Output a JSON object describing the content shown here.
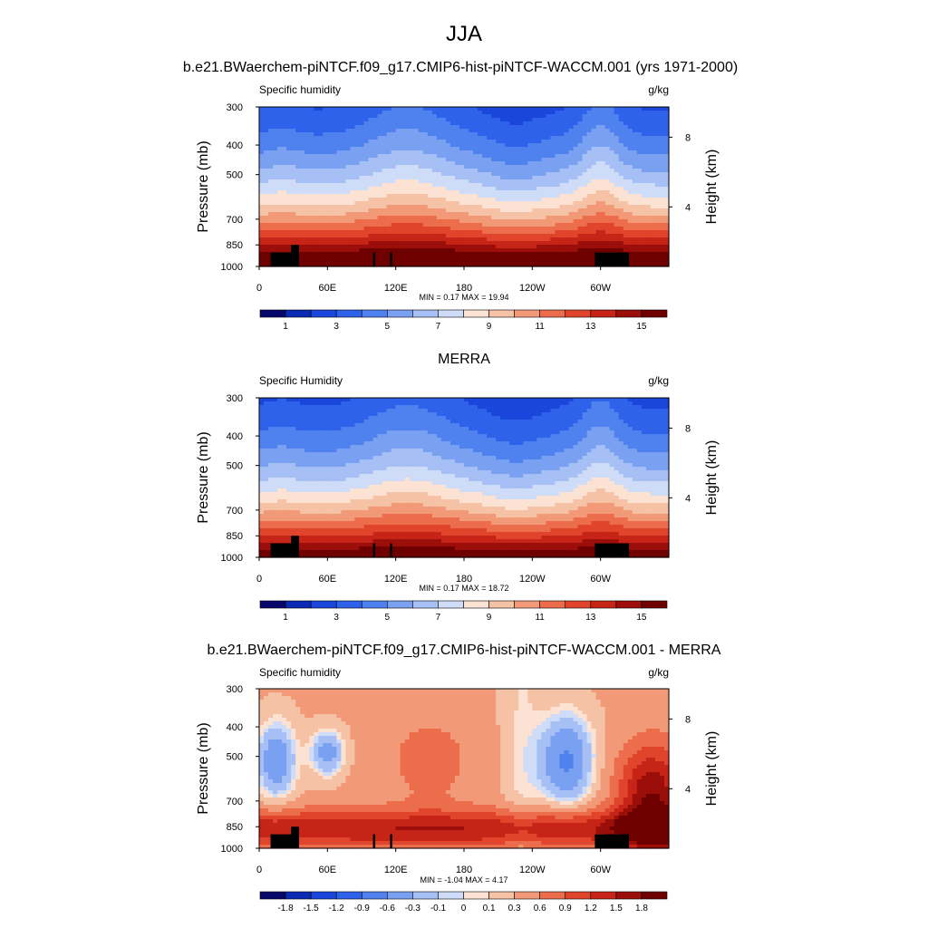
{
  "figure": {
    "season": "JJA"
  },
  "panels": [
    {
      "title": "b.e21.BWaerchem-piNTCF.f09_g17.CMIP6-hist-piNTCF-WACCM.001 (yrs 1971-2000)",
      "left_label": "Specific humidity",
      "right_label": "g/kg",
      "min_max": "MIN =   0.17  MAX =  19.94"
    },
    {
      "title": "MERRA",
      "left_label": "Specific Humidity",
      "right_label": "g/kg",
      "min_max": "MIN =   0.17  MAX =  18.72"
    },
    {
      "title": "b.e21.BWaerchem-piNTCF.f09_g17.CMIP6-hist-piNTCF-WACCM.001 - MERRA",
      "left_label": "Specific humidity",
      "right_label": "g/kg",
      "min_max": "MIN =  -1.04  MAX =   4.17"
    }
  ],
  "chart_data": [
    {
      "type": "heatmap",
      "title": "b.e21.BWaerchem-piNTCF.f09_g17.CMIP6-hist-piNTCF-WACCM.001 (yrs 1971-2000)",
      "variable": "Specific humidity",
      "units": "g/kg",
      "ylabel": "Pressure (mb)",
      "ylabel_right": "Height (km)",
      "x_ticks": [
        "0",
        "60E",
        "120E",
        "180",
        "120W",
        "60W"
      ],
      "x_tick_values": [
        0,
        60,
        120,
        180,
        240,
        300
      ],
      "xlim": [
        0,
        360
      ],
      "y_ticks": [
        300,
        400,
        500,
        700,
        850,
        1000
      ],
      "ylim": [
        1000,
        300
      ],
      "y_right_ticks": [
        4,
        8
      ],
      "min": 0.17,
      "max": 19.94,
      "colorbar_labels": [
        "1",
        "3",
        "5",
        "7",
        "9",
        "11",
        "13",
        "15"
      ],
      "colorbar_levels": [
        1,
        2,
        3,
        4,
        5,
        6,
        7,
        8,
        9,
        10,
        11,
        12,
        13,
        14,
        15
      ],
      "colors": [
        "#06066b",
        "#0a2ab4",
        "#1a46dc",
        "#2e62ea",
        "#4f82ef",
        "#7aa0f2",
        "#a6c0f5",
        "#cfdcf8",
        "#fbe2d2",
        "#f6c2a6",
        "#f29a78",
        "#ec6d4c",
        "#e0452c",
        "#c52416",
        "#9b0e0a",
        "#6e0000"
      ],
      "field_model": "moisture increases toward surface; contours bulge upward over tropical longitudes near 120E-180 and 60W",
      "levels_profile": {
        "lon": [
          0,
          30,
          60,
          120,
          150,
          180,
          220,
          240,
          300,
          330,
          360
        ],
        "top_moist_level_pressure": [
          520,
          430,
          450,
          380,
          390,
          430,
          500,
          520,
          360,
          450,
          470
        ]
      }
    },
    {
      "type": "heatmap",
      "title": "MERRA",
      "variable": "Specific Humidity",
      "units": "g/kg",
      "ylabel": "Pressure (mb)",
      "ylabel_right": "Height (km)",
      "x_ticks": [
        "0",
        "60E",
        "120E",
        "180",
        "120W",
        "60W"
      ],
      "x_tick_values": [
        0,
        60,
        120,
        180,
        240,
        300
      ],
      "xlim": [
        0,
        360
      ],
      "y_ticks": [
        300,
        400,
        500,
        700,
        850,
        1000
      ],
      "ylim": [
        1000,
        300
      ],
      "y_right_ticks": [
        4,
        8
      ],
      "min": 0.17,
      "max": 18.72,
      "colorbar_labels": [
        "1",
        "3",
        "5",
        "7",
        "9",
        "11",
        "13",
        "15"
      ],
      "colorbar_levels": [
        1,
        2,
        3,
        4,
        5,
        6,
        7,
        8,
        9,
        10,
        11,
        12,
        13,
        14,
        15
      ],
      "colors": [
        "#06066b",
        "#0a2ab4",
        "#1a46dc",
        "#2e62ea",
        "#4f82ef",
        "#7aa0f2",
        "#a6c0f5",
        "#cfdcf8",
        "#fbe2d2",
        "#f6c2a6",
        "#f29a78",
        "#ec6d4c",
        "#e0452c",
        "#c52416",
        "#9b0e0a",
        "#6e0000"
      ],
      "levels_profile": {
        "lon": [
          0,
          30,
          60,
          120,
          150,
          180,
          220,
          240,
          300,
          330,
          360
        ],
        "top_moist_level_pressure": [
          540,
          460,
          470,
          410,
          420,
          450,
          520,
          540,
          380,
          470,
          490
        ]
      }
    },
    {
      "type": "heatmap",
      "title": "b.e21.BWaerchem-piNTCF.f09_g17.CMIP6-hist-piNTCF-WACCM.001 - MERRA",
      "variable": "Specific humidity",
      "units": "g/kg",
      "ylabel": "Pressure (mb)",
      "ylabel_right": "Height (km)",
      "x_ticks": [
        "0",
        "60E",
        "120E",
        "180",
        "120W",
        "60W"
      ],
      "x_tick_values": [
        0,
        60,
        120,
        180,
        240,
        300
      ],
      "xlim": [
        0,
        360
      ],
      "y_ticks": [
        300,
        400,
        500,
        700,
        850,
        1000
      ],
      "ylim": [
        1000,
        300
      ],
      "y_right_ticks": [
        4,
        8
      ],
      "min": -1.04,
      "max": 4.17,
      "colorbar_labels": [
        "-1.8",
        "-1.5",
        "-1.2",
        "-0.9",
        "-0.6",
        "-0.3",
        "-0.1",
        "0",
        "0.1",
        "0.3",
        "0.6",
        "0.9",
        "1.2",
        "1.5",
        "1.8"
      ],
      "colorbar_levels": [
        -1.8,
        -1.5,
        -1.2,
        -0.9,
        -0.6,
        -0.3,
        -0.1,
        0,
        0.1,
        0.3,
        0.6,
        0.9,
        1.2,
        1.5,
        1.8
      ],
      "colors": [
        "#06066b",
        "#0a2ab4",
        "#1a46dc",
        "#2e62ea",
        "#4f82ef",
        "#7aa0f2",
        "#a6c0f5",
        "#cfdcf8",
        "#fbe2d2",
        "#f6c2a6",
        "#f29a78",
        "#ec6d4c",
        "#e0452c",
        "#c52416",
        "#9b0e0a",
        "#6e0000"
      ]
    }
  ]
}
